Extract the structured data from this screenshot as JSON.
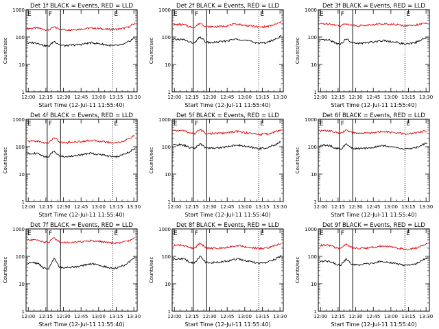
{
  "chart_data": [
    {
      "type": "line",
      "title": "Det 1f BLACK = Events, RED = LLD",
      "xlabel": "Start Time (12-Jul-11 11:55:40)",
      "ylabel": "Counts/sec",
      "yscale": "log",
      "ylim": [
        1,
        1000
      ],
      "x_tick_labels": [
        "12:00",
        "12:15",
        "12:30",
        "12:45",
        "13:00",
        "13:15",
        "13:30"
      ],
      "y_tick_labels": [
        "1",
        "10",
        "100",
        "1000"
      ],
      "markers": [
        "E",
        "F",
        "E"
      ],
      "series": [
        {
          "color": "#e00000",
          "values": [
            205,
            210,
            215,
            190,
            180,
            230,
            195,
            185,
            185,
            190,
            195,
            205,
            215,
            205,
            200,
            190,
            190,
            195,
            210,
            240,
            320
          ]
        },
        {
          "color": "#000000",
          "values": [
            60,
            62,
            60,
            50,
            45,
            70,
            52,
            48,
            50,
            52,
            54,
            58,
            62,
            58,
            55,
            50,
            48,
            50,
            55,
            70,
            95
          ]
        }
      ]
    },
    {
      "type": "line",
      "title": "Det 2f BLACK = Events, RED = LLD",
      "xlabel": "Start Time (12-Jul-11 11:55:40)",
      "ylabel": "Counts/sec",
      "yscale": "log",
      "ylim": [
        1,
        1000
      ],
      "x_tick_labels": [
        "12:00",
        "12:15",
        "12:30",
        "12:45",
        "13:00",
        "13:15",
        "13:30"
      ],
      "y_tick_labels": [
        "1",
        "10",
        "100",
        "1000"
      ],
      "markers": [
        "E",
        "F",
        "E"
      ],
      "series": [
        {
          "color": "#e00000",
          "values": [
            280,
            285,
            285,
            235,
            225,
            330,
            240,
            235,
            240,
            245,
            260,
            285,
            295,
            270,
            260,
            245,
            230,
            235,
            255,
            290,
            350
          ]
        },
        {
          "color": "#000000",
          "values": [
            80,
            82,
            80,
            65,
            60,
            100,
            65,
            62,
            65,
            68,
            72,
            80,
            85,
            78,
            72,
            65,
            60,
            62,
            70,
            85,
            110
          ]
        }
      ]
    },
    {
      "type": "line",
      "title": "Det 3f BLACK = Events, RED = LLD",
      "xlabel": "Start Time (12-Jul-11 11:55:40)",
      "ylabel": "Counts/sec",
      "yscale": "log",
      "ylim": [
        1,
        1000
      ],
      "x_tick_labels": [
        "12:00",
        "12:15",
        "12:30",
        "12:45",
        "13:00",
        "13:15",
        "13:30"
      ],
      "y_tick_labels": [
        "1",
        "10",
        "100",
        "1000"
      ],
      "markers": [
        "E",
        "F",
        "E"
      ],
      "series": [
        {
          "color": "#e00000",
          "values": [
            300,
            305,
            305,
            270,
            260,
            310,
            270,
            260,
            265,
            270,
            280,
            300,
            310,
            295,
            285,
            270,
            260,
            265,
            280,
            300,
            320
          ]
        },
        {
          "color": "#000000",
          "values": [
            75,
            78,
            75,
            60,
            55,
            85,
            62,
            58,
            60,
            62,
            66,
            72,
            76,
            70,
            65,
            60,
            55,
            58,
            65,
            80,
            95
          ]
        }
      ]
    },
    {
      "type": "line",
      "title": "Det 4f BLACK = Events, RED = LLD",
      "xlabel": "Start Time (12-Jul-11 11:55:40)",
      "ylabel": "Counts/sec",
      "yscale": "log",
      "ylim": [
        1,
        1000
      ],
      "x_tick_labels": [
        "12:00",
        "12:15",
        "12:30",
        "12:45",
        "13:00",
        "13:15",
        "13:30"
      ],
      "y_tick_labels": [
        "1",
        "10",
        "100",
        "1000"
      ],
      "markers": [
        "E",
        "F",
        "E"
      ],
      "series": [
        {
          "color": "#e00000",
          "values": [
            155,
            160,
            160,
            140,
            135,
            220,
            145,
            140,
            145,
            150,
            155,
            165,
            170,
            160,
            155,
            145,
            140,
            145,
            160,
            200,
            260
          ]
        },
        {
          "color": "#000000",
          "values": [
            55,
            58,
            55,
            45,
            42,
            70,
            45,
            43,
            45,
            47,
            50,
            55,
            58,
            53,
            50,
            45,
            42,
            45,
            52,
            65,
            85
          ]
        }
      ]
    },
    {
      "type": "line",
      "title": "Det 5f BLACK = Events, RED = LLD",
      "xlabel": "Start Time (12-Jul-11 11:55:40)",
      "ylabel": "Counts/sec",
      "yscale": "log",
      "ylim": [
        1,
        1000
      ],
      "x_tick_labels": [
        "12:00",
        "12:15",
        "12:30",
        "12:45",
        "13:00",
        "13:15",
        "13:30"
      ],
      "y_tick_labels": [
        "1",
        "10",
        "100",
        "1000"
      ],
      "markers": [
        "E",
        "F",
        "E"
      ],
      "series": [
        {
          "color": "#e00000",
          "values": [
            380,
            385,
            380,
            320,
            300,
            420,
            310,
            300,
            305,
            310,
            320,
            345,
            360,
            335,
            315,
            295,
            280,
            285,
            310,
            350,
            420
          ]
        },
        {
          "color": "#000000",
          "values": [
            115,
            118,
            112,
            92,
            88,
            125,
            92,
            88,
            90,
            94,
            100,
            110,
            115,
            105,
            98,
            90,
            85,
            88,
            100,
            120,
            150
          ]
        }
      ]
    },
    {
      "type": "line",
      "title": "Det 6f BLACK = Events, RED = LLD",
      "xlabel": "Start Time (12-Jul-11 11:55:40)",
      "ylabel": "Counts/sec",
      "yscale": "log",
      "ylim": [
        1,
        1000
      ],
      "x_tick_labels": [
        "12:00",
        "12:15",
        "12:30",
        "12:45",
        "13:00",
        "13:15",
        "13:30"
      ],
      "y_tick_labels": [
        "1",
        "10",
        "100",
        "1000"
      ],
      "markers": [
        "E",
        "F",
        "E"
      ],
      "series": [
        {
          "color": "#e00000",
          "values": [
            380,
            380,
            375,
            330,
            310,
            400,
            320,
            305,
            310,
            315,
            325,
            345,
            355,
            335,
            320,
            305,
            290,
            300,
            320,
            350,
            380
          ]
        },
        {
          "color": "#000000",
          "values": [
            110,
            112,
            108,
            88,
            82,
            120,
            88,
            84,
            86,
            90,
            95,
            105,
            110,
            100,
            95,
            86,
            82,
            85,
            95,
            115,
            140
          ]
        }
      ]
    },
    {
      "type": "line",
      "title": "Det 7f BLACK = Events, RED = LLD",
      "xlabel": "Start Time (12-Jul-11 11:55:40)",
      "ylabel": "Counts/sec",
      "yscale": "log",
      "ylim": [
        1,
        1000
      ],
      "x_tick_labels": [
        "12:00",
        "12:15",
        "12:30",
        "12:45",
        "13:00",
        "13:15",
        "13:30"
      ],
      "y_tick_labels": [
        "1",
        "10",
        "100",
        "1000"
      ],
      "markers": [
        "E",
        "F",
        "E"
      ],
      "series": [
        {
          "color": "#e00000",
          "values": [
            390,
            400,
            395,
            340,
            320,
            480,
            330,
            320,
            325,
            330,
            340,
            360,
            380,
            355,
            340,
            320,
            305,
            310,
            335,
            380,
            460
          ]
        },
        {
          "color": "#000000",
          "values": [
            55,
            60,
            55,
            38,
            35,
            80,
            40,
            38,
            40,
            42,
            45,
            50,
            55,
            48,
            44,
            40,
            37,
            40,
            48,
            65,
            95
          ]
        }
      ]
    },
    {
      "type": "line",
      "title": "Det 8f BLACK = Events, RED = LLD",
      "xlabel": "Start Time (12-Jul-11 11:55:40)",
      "ylabel": "Counts/sec",
      "yscale": "log",
      "ylim": [
        1,
        1000
      ],
      "x_tick_labels": [
        "12:00",
        "12:15",
        "12:30",
        "12:45",
        "13:00",
        "13:15",
        "13:30"
      ],
      "y_tick_labels": [
        "1",
        "10",
        "100",
        "1000"
      ],
      "markers": [
        "E",
        "F",
        "E"
      ],
      "series": [
        {
          "color": "#e00000",
          "values": [
            250,
            255,
            250,
            205,
            195,
            310,
            205,
            195,
            200,
            205,
            215,
            235,
            250,
            230,
            215,
            200,
            190,
            195,
            215,
            250,
            300
          ]
        },
        {
          "color": "#000000",
          "values": [
            80,
            82,
            80,
            62,
            58,
            100,
            62,
            58,
            60,
            63,
            68,
            75,
            80,
            72,
            66,
            60,
            56,
            58,
            66,
            80,
            105
          ]
        }
      ]
    },
    {
      "type": "line",
      "title": "Det 9f BLACK = Events, RED = LLD",
      "xlabel": "Start Time (12-Jul-11 11:55:40)",
      "ylabel": "Counts/sec",
      "yscale": "log",
      "ylim": [
        1,
        1000
      ],
      "x_tick_labels": [
        "12:00",
        "12:15",
        "12:30",
        "12:45",
        "13:00",
        "13:15",
        "13:30"
      ],
      "y_tick_labels": [
        "1",
        "10",
        "100",
        "1000"
      ],
      "markers": [
        "E",
        "F",
        "E"
      ],
      "series": [
        {
          "color": "#e00000",
          "values": [
            250,
            255,
            250,
            205,
            195,
            280,
            205,
            195,
            200,
            205,
            215,
            230,
            240,
            225,
            210,
            195,
            180,
            185,
            205,
            240,
            290
          ]
        },
        {
          "color": "#000000",
          "values": [
            65,
            68,
            66,
            52,
            48,
            80,
            52,
            48,
            50,
            53,
            56,
            62,
            66,
            60,
            55,
            50,
            46,
            48,
            55,
            68,
            90
          ]
        }
      ]
    }
  ]
}
